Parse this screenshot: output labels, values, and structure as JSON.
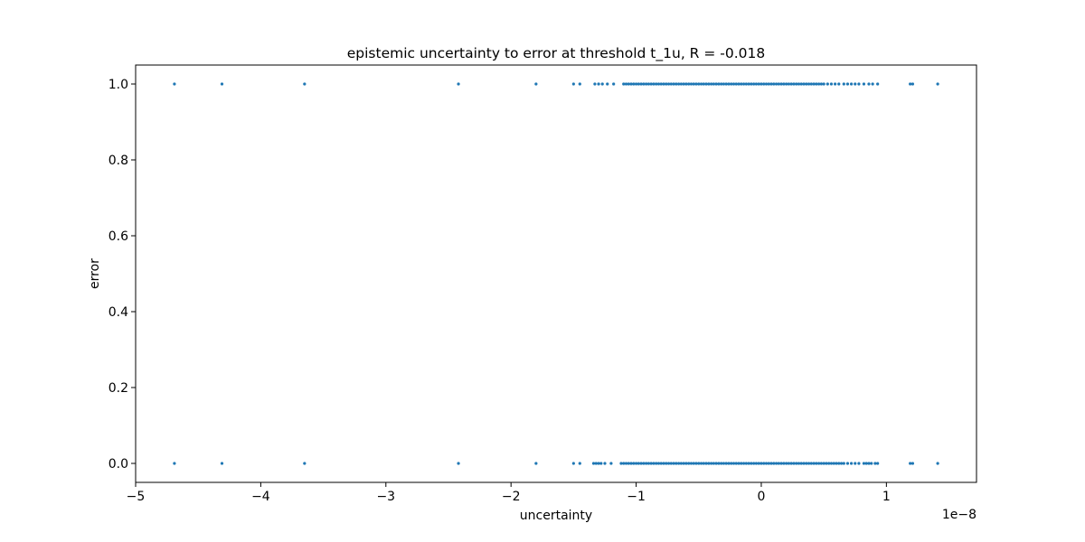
{
  "chart_data": {
    "type": "scatter",
    "title": "epistemic uncertainty to error at threshold t_1u, R = -0.018",
    "xlabel": "uncertainty",
    "ylabel": "error",
    "x_offset_label": "1e−8",
    "xlim": [
      -5.0,
      1.72
    ],
    "ylim": [
      -0.05,
      1.05
    ],
    "xticks": [
      -5,
      -4,
      -3,
      -2,
      -1,
      0,
      1
    ],
    "xtick_labels": [
      "−5",
      "−4",
      "−3",
      "−2",
      "−1",
      "0",
      "1"
    ],
    "yticks": [
      0.0,
      0.2,
      0.4,
      0.6,
      0.8,
      1.0
    ],
    "ytick_labels": [
      "0.0",
      "0.2",
      "0.4",
      "0.6",
      "0.8",
      "1.0"
    ],
    "marker_color": "#1f77b4",
    "series": [
      {
        "y": 1.0,
        "x": [
          -4.69,
          -4.31,
          -3.65,
          -2.42,
          -1.8,
          -1.5,
          -1.45,
          -1.33,
          -1.3,
          -1.27,
          -1.23,
          -1.18,
          -1.1,
          -1.08,
          -1.06,
          -1.04,
          -1.02,
          -1.0,
          -0.98,
          -0.96,
          -0.94,
          -0.92,
          -0.9,
          -0.88,
          -0.86,
          -0.84,
          -0.82,
          -0.8,
          -0.78,
          -0.76,
          -0.74,
          -0.72,
          -0.7,
          -0.68,
          -0.66,
          -0.64,
          -0.62,
          -0.6,
          -0.58,
          -0.56,
          -0.54,
          -0.52,
          -0.5,
          -0.48,
          -0.46,
          -0.44,
          -0.42,
          -0.4,
          -0.38,
          -0.36,
          -0.34,
          -0.32,
          -0.3,
          -0.28,
          -0.26,
          -0.24,
          -0.22,
          -0.2,
          -0.18,
          -0.16,
          -0.14,
          -0.12,
          -0.1,
          -0.08,
          -0.06,
          -0.04,
          -0.02,
          0.0,
          0.02,
          0.04,
          0.06,
          0.08,
          0.1,
          0.12,
          0.14,
          0.16,
          0.18,
          0.2,
          0.22,
          0.24,
          0.26,
          0.28,
          0.3,
          0.32,
          0.34,
          0.36,
          0.38,
          0.4,
          0.42,
          0.44,
          0.46,
          0.48,
          0.5,
          0.53,
          0.56,
          0.59,
          0.62,
          0.66,
          0.69,
          0.72,
          0.75,
          0.78,
          0.82,
          0.86,
          0.89,
          0.93,
          1.19,
          1.21,
          1.41
        ]
      },
      {
        "y": 0.0,
        "x": [
          -4.69,
          -4.31,
          -3.65,
          -2.42,
          -1.8,
          -1.5,
          -1.45,
          -1.34,
          -1.32,
          -1.3,
          -1.28,
          -1.25,
          -1.2,
          -1.12,
          -1.1,
          -1.08,
          -1.06,
          -1.04,
          -1.02,
          -1.0,
          -0.98,
          -0.96,
          -0.94,
          -0.92,
          -0.9,
          -0.88,
          -0.86,
          -0.84,
          -0.82,
          -0.8,
          -0.78,
          -0.76,
          -0.74,
          -0.72,
          -0.7,
          -0.68,
          -0.66,
          -0.64,
          -0.62,
          -0.6,
          -0.58,
          -0.56,
          -0.54,
          -0.52,
          -0.5,
          -0.48,
          -0.46,
          -0.44,
          -0.42,
          -0.4,
          -0.38,
          -0.36,
          -0.34,
          -0.32,
          -0.3,
          -0.28,
          -0.26,
          -0.24,
          -0.22,
          -0.2,
          -0.18,
          -0.16,
          -0.14,
          -0.12,
          -0.1,
          -0.08,
          -0.06,
          -0.04,
          -0.02,
          0.0,
          0.02,
          0.04,
          0.06,
          0.08,
          0.1,
          0.12,
          0.14,
          0.16,
          0.18,
          0.2,
          0.22,
          0.24,
          0.26,
          0.28,
          0.3,
          0.32,
          0.34,
          0.36,
          0.38,
          0.4,
          0.42,
          0.44,
          0.46,
          0.48,
          0.5,
          0.52,
          0.54,
          0.56,
          0.58,
          0.6,
          0.62,
          0.64,
          0.66,
          0.69,
          0.72,
          0.75,
          0.78,
          0.82,
          0.84,
          0.86,
          0.88,
          0.91,
          0.93,
          1.19,
          1.21,
          1.41
        ]
      }
    ]
  }
}
